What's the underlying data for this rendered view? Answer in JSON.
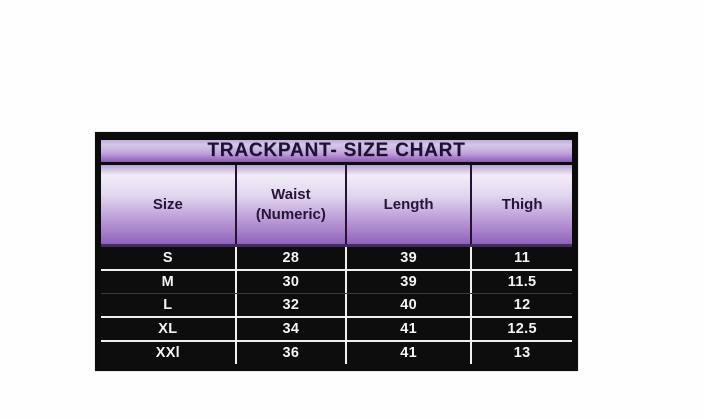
{
  "chart_data": {
    "type": "table",
    "title": "TRACKPANT- SIZE CHART",
    "columns": [
      "Size",
      "Waist (Numeric)",
      "Length",
      "Thigh"
    ],
    "rows": [
      [
        "S",
        "28",
        "39",
        "11"
      ],
      [
        "M",
        "30",
        "39",
        "11.5"
      ],
      [
        "L",
        "32",
        "40",
        "12"
      ],
      [
        "XL",
        "34",
        "41",
        "12.5"
      ],
      [
        "XXl",
        "36",
        "41",
        "13"
      ]
    ]
  },
  "colors": {
    "page_background": "#ffffff",
    "table_border": "#0b0b0b",
    "header_gradient_top": "#f2edf9",
    "header_gradient_bottom": "#8f63ba",
    "title_gradient_top": "#d4c8e8",
    "title_gradient_bottom": "#9c6fc4",
    "title_text": "#1c1033",
    "header_text": "#261539",
    "row_background": "#0d0d0d",
    "row_text": "#f4f4f4",
    "separator": "#efefef"
  }
}
